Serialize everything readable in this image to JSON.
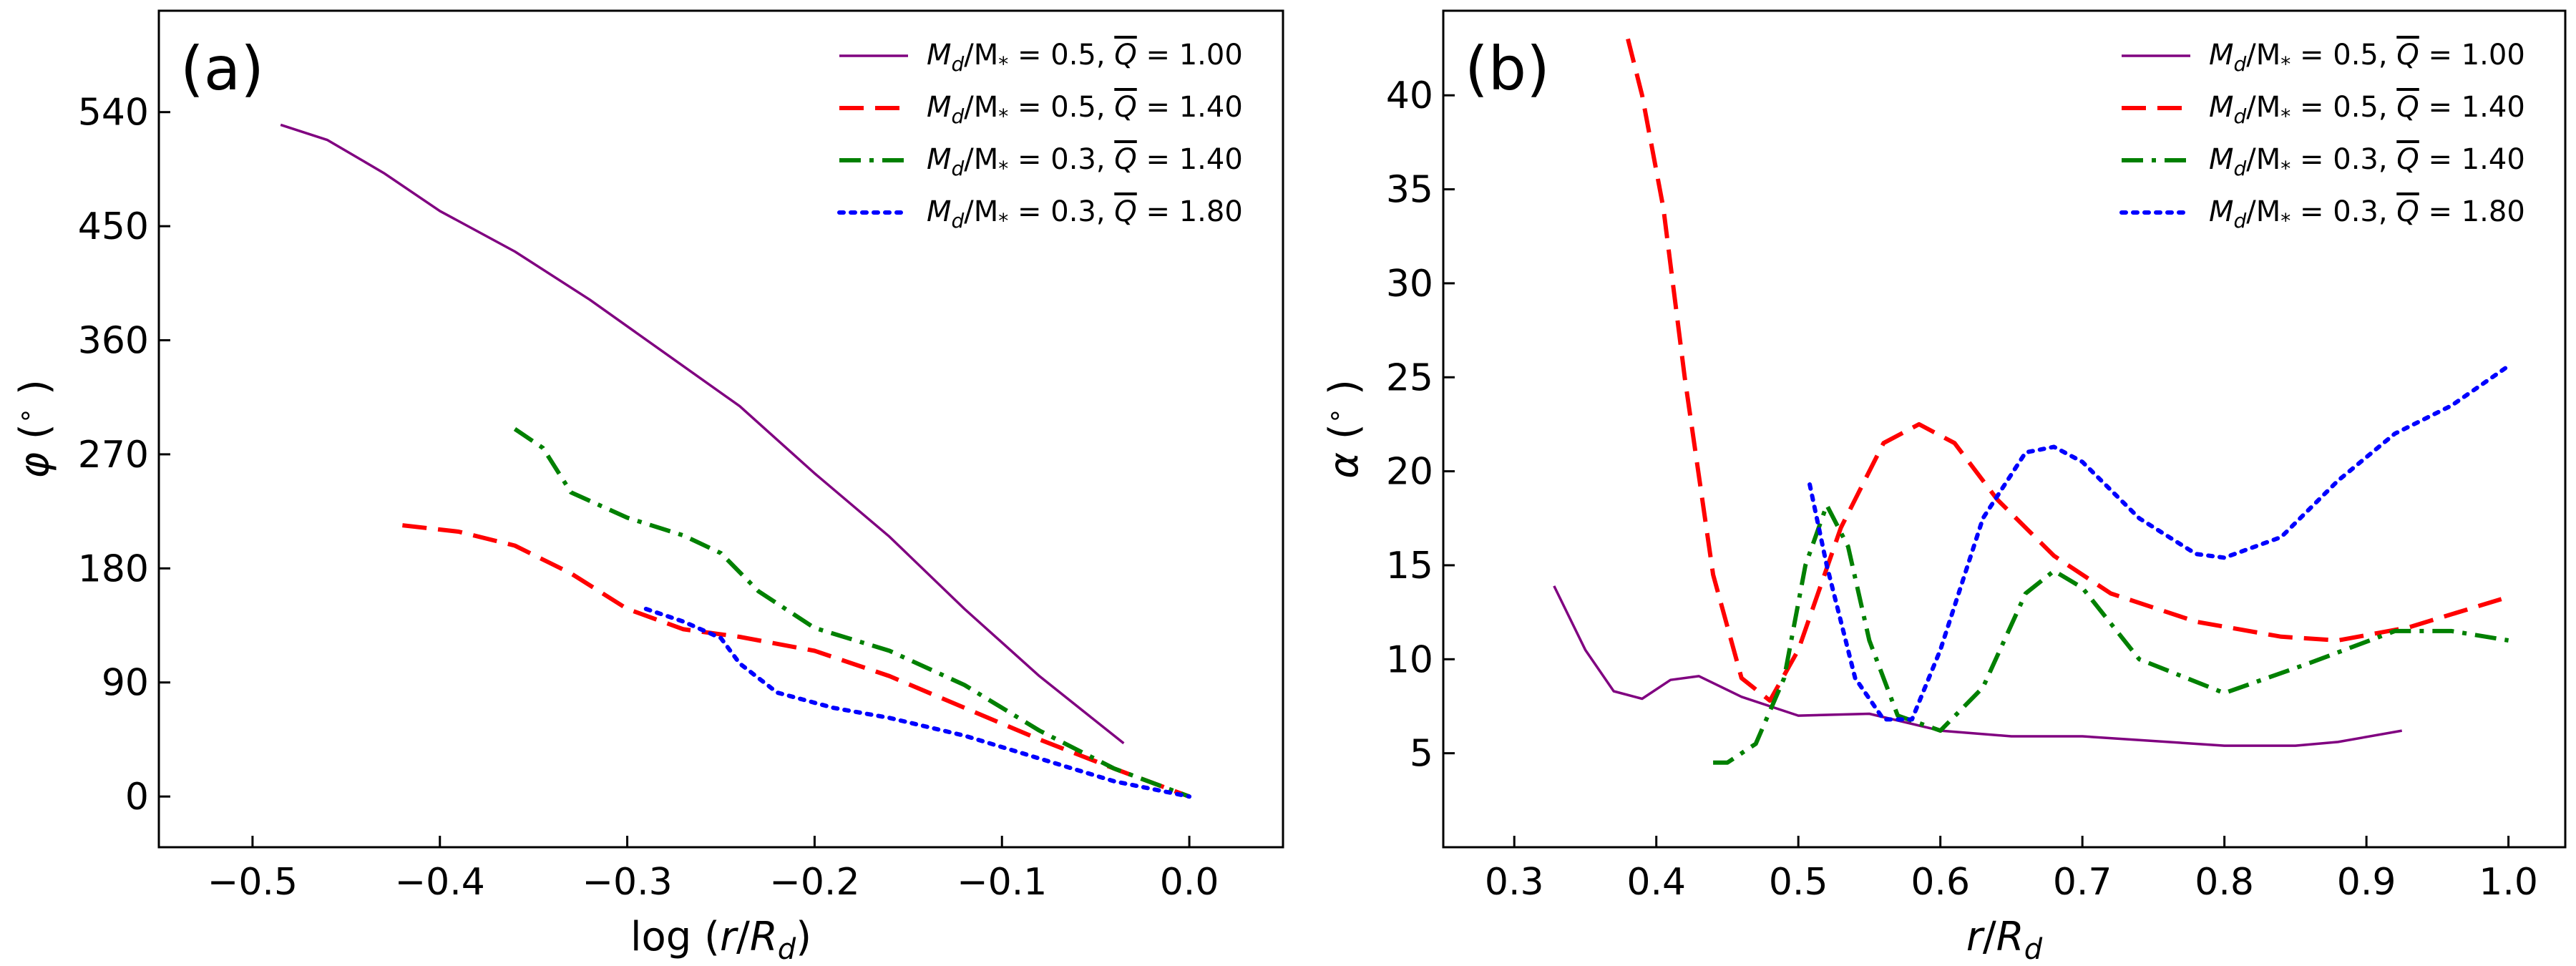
{
  "chart_data": [
    {
      "type": "line",
      "panel_label": "(a)",
      "xlabel": "log (r/R_d)",
      "ylabel": "φ (°)",
      "xlim": [
        -0.55,
        0.05
      ],
      "ylim": [
        -40,
        620
      ],
      "xticks": [
        -0.5,
        -0.4,
        -0.3,
        -0.2,
        -0.1,
        0.0
      ],
      "xtick_labels": [
        "−0.5",
        "−0.4",
        "−0.3",
        "−0.2",
        "−0.1",
        "0.0"
      ],
      "yticks": [
        0,
        90,
        180,
        270,
        360,
        450,
        540
      ],
      "ytick_labels": [
        "0",
        "90",
        "180",
        "270",
        "360",
        "450",
        "540"
      ],
      "legend_position": "top-right",
      "series": [
        {
          "name": "Md/M* = 0.5, Q̄ = 1.00",
          "legend": {
            "lhs": "M",
            "sub1": "d",
            "mid": "/M",
            "sub2": "*",
            "eq": " = 0.5,  ",
            "q": "Q",
            "qval": " = 1.00"
          },
          "color": "#800080",
          "dash": "solid",
          "x": [
            -0.485,
            -0.46,
            -0.43,
            -0.4,
            -0.36,
            -0.32,
            -0.28,
            -0.24,
            -0.2,
            -0.16,
            -0.12,
            -0.08,
            -0.035
          ],
          "y": [
            530,
            518,
            492,
            462,
            430,
            392,
            350,
            308,
            255,
            205,
            148,
            95,
            42
          ]
        },
        {
          "name": "Md/M* = 0.5, Q̄ = 1.40",
          "legend": {
            "lhs": "M",
            "sub1": "d",
            "mid": "/M",
            "sub2": "*",
            "eq": " = 0.5,  ",
            "q": "Q",
            "qval": " = 1.40"
          },
          "color": "#ff0000",
          "dash": "dashed",
          "x": [
            -0.42,
            -0.39,
            -0.36,
            -0.33,
            -0.3,
            -0.27,
            -0.24,
            -0.2,
            -0.16,
            -0.12,
            -0.08,
            -0.04,
            0.0
          ],
          "y": [
            214,
            209,
            198,
            176,
            148,
            132,
            126,
            115,
            95,
            70,
            45,
            22,
            0
          ]
        },
        {
          "name": "Md/M* = 0.3, Q̄ = 1.40",
          "legend": {
            "lhs": "M",
            "sub1": "d",
            "mid": "/M",
            "sub2": "*",
            "eq": " = 0.3,  ",
            "q": "Q",
            "qval": " = 1.40"
          },
          "color": "#008000",
          "dash": "dashdot",
          "x": [
            -0.36,
            -0.345,
            -0.33,
            -0.3,
            -0.27,
            -0.25,
            -0.23,
            -0.2,
            -0.16,
            -0.12,
            -0.08,
            -0.04,
            0.0
          ],
          "y": [
            290,
            275,
            240,
            220,
            206,
            192,
            162,
            133,
            115,
            88,
            52,
            22,
            0
          ]
        },
        {
          "name": "Md/M* = 0.3, Q̄ = 1.80",
          "legend": {
            "lhs": "M",
            "sub1": "d",
            "mid": "/M",
            "sub2": "*",
            "eq": " = 0.3,  ",
            "q": "Q",
            "qval": " = 1.80"
          },
          "color": "#0000ff",
          "dash": "dotted",
          "x": [
            -0.29,
            -0.27,
            -0.25,
            -0.24,
            -0.22,
            -0.19,
            -0.16,
            -0.12,
            -0.08,
            -0.04,
            0.0
          ],
          "y": [
            148,
            138,
            125,
            105,
            82,
            70,
            62,
            48,
            30,
            12,
            0
          ]
        }
      ]
    },
    {
      "type": "line",
      "panel_label": "(b)",
      "xlabel": "r/R_d",
      "ylabel": "α (°)",
      "xlim": [
        0.25,
        1.04
      ],
      "ylim": [
        0,
        44.5
      ],
      "xticks": [
        0.3,
        0.4,
        0.5,
        0.6,
        0.7,
        0.8,
        0.9,
        1.0
      ],
      "xtick_labels": [
        "0.3",
        "0.4",
        "0.5",
        "0.6",
        "0.7",
        "0.8",
        "0.9",
        "1.0"
      ],
      "yticks": [
        5,
        10,
        15,
        20,
        25,
        30,
        35,
        40
      ],
      "ytick_labels": [
        "5",
        "10",
        "15",
        "20",
        "25",
        "30",
        "35",
        "40"
      ],
      "legend_position": "top-right",
      "series": [
        {
          "name": "Md/M* = 0.5, Q̄ = 1.00",
          "legend": {
            "lhs": "M",
            "sub1": "d",
            "mid": "/M",
            "sub2": "*",
            "eq": " = 0.5,  ",
            "q": "Q",
            "qval": " = 1.00"
          },
          "color": "#800080",
          "dash": "solid",
          "x": [
            0.328,
            0.35,
            0.37,
            0.39,
            0.41,
            0.43,
            0.46,
            0.5,
            0.55,
            0.6,
            0.65,
            0.7,
            0.8,
            0.85,
            0.88,
            0.925
          ],
          "y": [
            13.9,
            10.5,
            8.3,
            7.9,
            8.9,
            9.1,
            8.0,
            7.0,
            7.1,
            6.2,
            5.9,
            5.9,
            5.4,
            5.4,
            5.6,
            6.2
          ]
        },
        {
          "name": "Md/M* = 0.5, Q̄ = 1.40",
          "legend": {
            "lhs": "M",
            "sub1": "d",
            "mid": "/M",
            "sub2": "*",
            "eq": " = 0.5,  ",
            "q": "Q",
            "qval": " = 1.40"
          },
          "color": "#ff0000",
          "dash": "dashed",
          "x": [
            0.38,
            0.39,
            0.405,
            0.42,
            0.44,
            0.46,
            0.48,
            0.5,
            0.53,
            0.56,
            0.585,
            0.61,
            0.64,
            0.68,
            0.72,
            0.78,
            0.84,
            0.88,
            0.93,
            0.995
          ],
          "y": [
            43.0,
            40.0,
            34.0,
            25.0,
            14.5,
            9.0,
            7.8,
            10.5,
            17.0,
            21.5,
            22.5,
            21.5,
            18.5,
            15.5,
            13.5,
            12.0,
            11.2,
            11.0,
            11.7,
            13.2
          ]
        },
        {
          "name": "Md/M* = 0.3, Q̄ = 1.40",
          "legend": {
            "lhs": "M",
            "sub1": "d",
            "mid": "/M",
            "sub2": "*",
            "eq": " = 0.3,  ",
            "q": "Q",
            "qval": " = 1.40"
          },
          "color": "#008000",
          "dash": "dashdot",
          "x": [
            0.44,
            0.45,
            0.47,
            0.49,
            0.505,
            0.52,
            0.535,
            0.55,
            0.57,
            0.6,
            0.63,
            0.66,
            0.68,
            0.7,
            0.74,
            0.8,
            0.86,
            0.92,
            0.96,
            1.0
          ],
          "y": [
            4.5,
            4.5,
            5.5,
            9.0,
            15.0,
            18.2,
            16.0,
            11.0,
            7.0,
            6.2,
            8.5,
            13.5,
            14.7,
            13.8,
            10.0,
            8.2,
            9.8,
            11.5,
            11.5,
            11.0
          ]
        },
        {
          "name": "Md/M* = 0.3, Q̄ = 1.80",
          "legend": {
            "lhs": "M",
            "sub1": "d",
            "mid": "/M",
            "sub2": "*",
            "eq": " = 0.3,  ",
            "q": "Q",
            "qval": " = 1.80"
          },
          "color": "#0000ff",
          "dash": "dotted",
          "x": [
            0.508,
            0.52,
            0.54,
            0.56,
            0.58,
            0.6,
            0.63,
            0.66,
            0.68,
            0.7,
            0.74,
            0.78,
            0.8,
            0.84,
            0.88,
            0.92,
            0.96,
            1.0
          ],
          "y": [
            19.3,
            15.0,
            9.0,
            6.8,
            6.8,
            10.5,
            17.5,
            21.0,
            21.3,
            20.5,
            17.5,
            15.6,
            15.4,
            16.5,
            19.5,
            22.0,
            23.5,
            25.6
          ]
        }
      ]
    }
  ]
}
